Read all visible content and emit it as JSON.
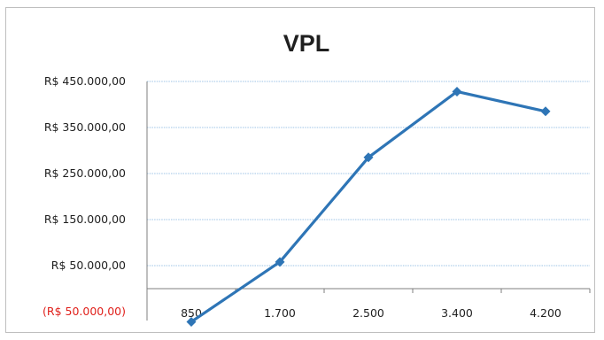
{
  "chart_data": {
    "type": "line",
    "title": "VPL",
    "xlabel": "",
    "ylabel": "",
    "categories": [
      "850",
      "1.700",
      "2.500",
      "3.400",
      "4.200"
    ],
    "series": [
      {
        "values": [
          -72000,
          58000,
          285000,
          428000,
          385000
        ]
      }
    ],
    "y_ticks": [
      {
        "value": 450000,
        "label": "R$ 450.000,00",
        "negative": false
      },
      {
        "value": 350000,
        "label": "R$ 350.000,00",
        "negative": false
      },
      {
        "value": 250000,
        "label": "R$ 250.000,00",
        "negative": false
      },
      {
        "value": 150000,
        "label": "R$ 150.000,00",
        "negative": false
      },
      {
        "value": 50000,
        "label": "R$ 50.000,00",
        "negative": false
      },
      {
        "value": -50000,
        "label": "(R$ 50.000,00)",
        "negative": true
      }
    ],
    "ylim": [
      -50000,
      450000
    ],
    "grid": true,
    "legend": "none",
    "colors": {
      "line": "#2e75b6",
      "grid": "#9dc3e6",
      "negative_label": "#e0201b"
    }
  }
}
